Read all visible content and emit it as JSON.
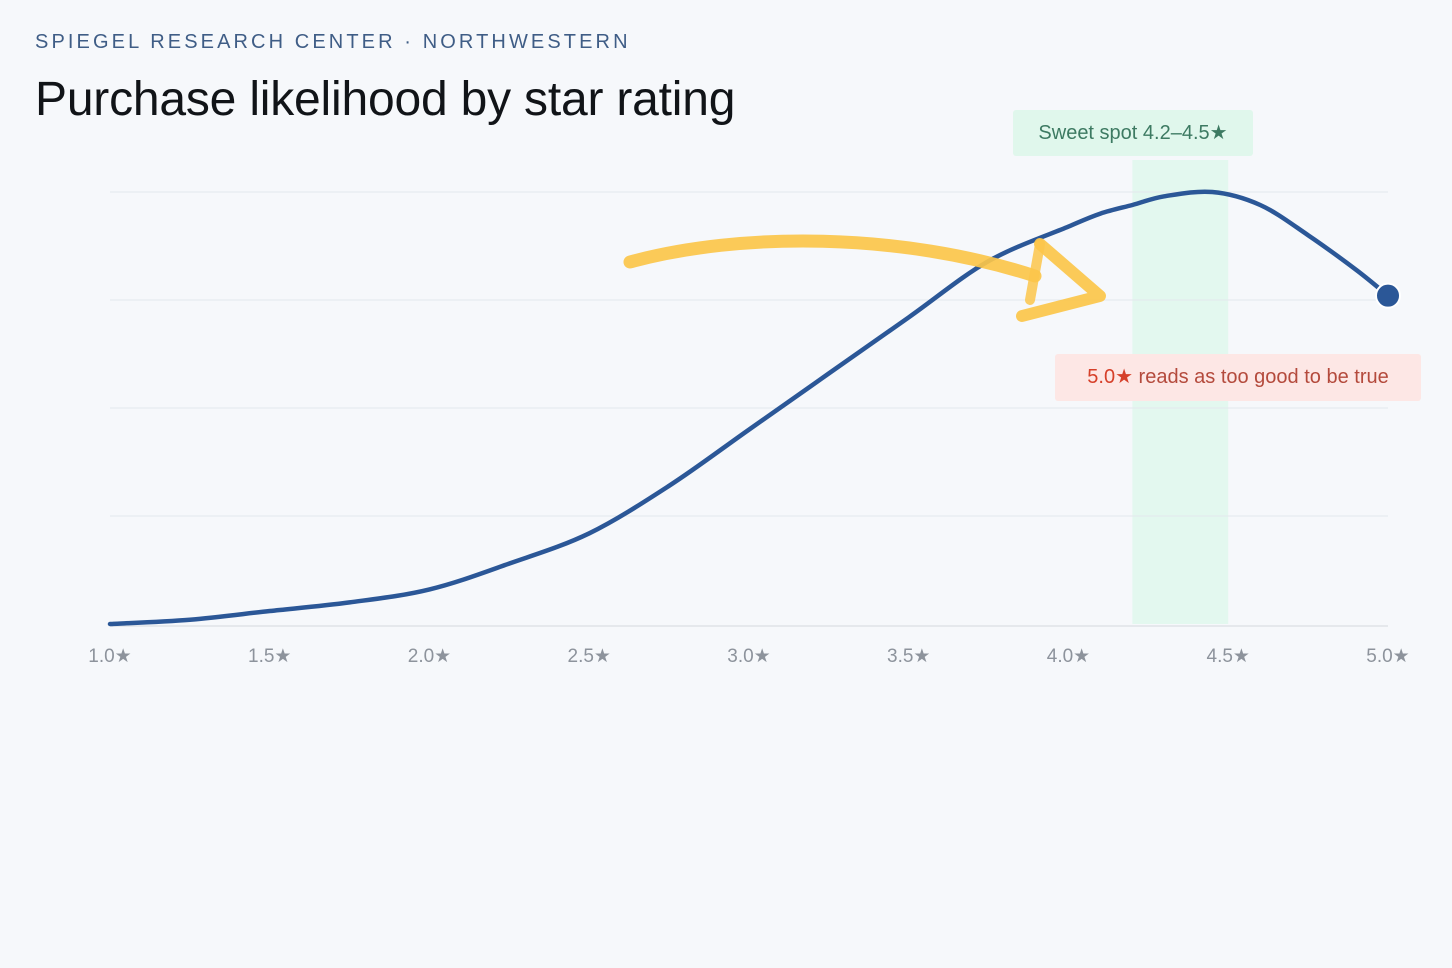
{
  "header": {
    "kicker": "SPIEGEL RESEARCH CENTER · NORTHWESTERN",
    "title": "Purchase likelihood by star rating"
  },
  "annotations": {
    "sweet_spot": "Sweet spot 4.2–4.5★",
    "too_good_star": "5.0★",
    "too_good_text": " reads as too good to be true"
  },
  "colors": {
    "line": "#2b5797",
    "sweet_band": "#e3f8ef",
    "arrow": "#fbc64a",
    "grid": "#e3e7ec"
  },
  "chart_data": {
    "type": "line",
    "title": "Purchase likelihood by star rating",
    "xlabel": "",
    "ylabel": "",
    "xlim": [
      1.0,
      5.0
    ],
    "ylim": [
      0,
      100
    ],
    "x_tick_labels": [
      "1.0★",
      "1.5★",
      "2.0★",
      "2.5★",
      "3.0★",
      "3.5★",
      "4.0★",
      "4.5★",
      "5.0★"
    ],
    "x_ticks": [
      1.0,
      1.5,
      2.0,
      2.5,
      3.0,
      3.5,
      4.0,
      4.5,
      5.0
    ],
    "grid": "horizontal",
    "highlight_band": {
      "x_range": [
        4.2,
        4.5
      ],
      "label": "Sweet spot 4.2–4.5★"
    },
    "series": [
      {
        "x": [
          1.0,
          1.25,
          1.5,
          1.75,
          2.0,
          2.25,
          2.5,
          2.75,
          3.0,
          3.25,
          3.5,
          3.75,
          4.0,
          4.1,
          4.2,
          4.3,
          4.45,
          4.6,
          4.75,
          4.9,
          5.0
        ],
        "values": [
          0,
          1,
          3,
          5,
          8,
          14,
          21,
          32,
          45,
          58,
          71,
          84,
          92,
          95,
          97,
          99,
          100,
          97,
          90,
          82,
          76
        ]
      }
    ]
  }
}
